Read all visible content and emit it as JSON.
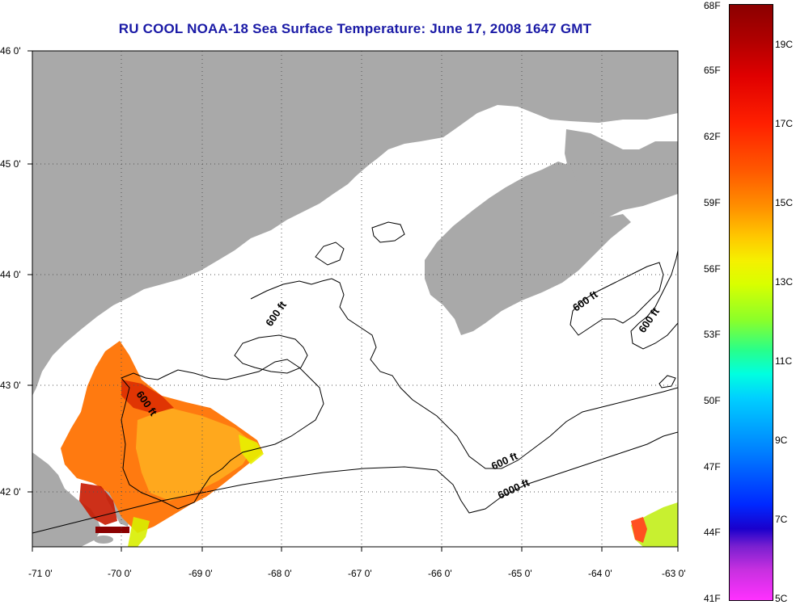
{
  "title": "RU COOL  NOAA-18  Sea Surface Temperature:  June 17, 2008 1647 GMT",
  "map": {
    "lat_labels": [
      "46 0'",
      "45 0'",
      "44 0'",
      "43 0'",
      "42 0'"
    ],
    "lon_labels": [
      "-71 0'",
      "-70 0'",
      "-69 0'",
      "-68 0'",
      "-67 0'",
      "-66 0'",
      "-65 0'",
      "-64 0'",
      "-63 0'"
    ],
    "contour_labels": {
      "c1": "600 ft",
      "c2": "600 ft",
      "c3": "600 ft",
      "c4": "600 ft",
      "c5": "600 ft",
      "c6": "6000 ft"
    },
    "colors": {
      "land": "#a9a9a9",
      "water": "#ffffff",
      "title": "#1a1aa6",
      "contour": "#000000"
    }
  },
  "colorbar": {
    "fahrenheit": [
      "68F",
      "65F",
      "62F",
      "59F",
      "56F",
      "53F",
      "50F",
      "47F",
      "44F",
      "41F"
    ],
    "celsius": [
      "19C",
      "17C",
      "15C",
      "13C",
      "11C",
      "9C",
      "7C",
      "5C"
    ]
  }
}
